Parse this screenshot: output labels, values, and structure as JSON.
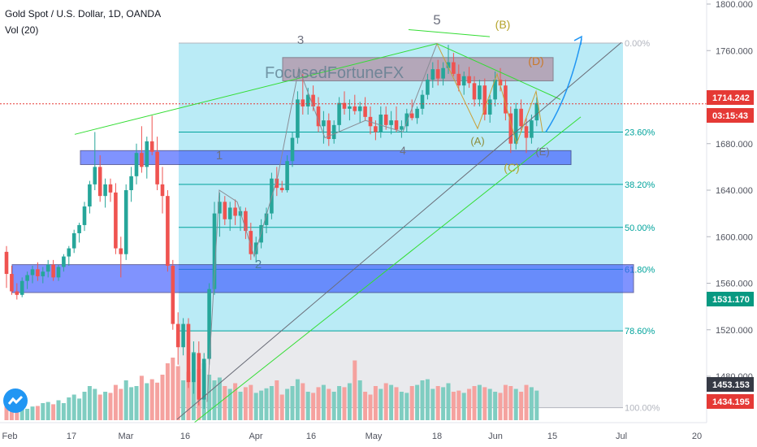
{
  "header": {
    "symbol_line": "Gold Spot / U.S. Dollar, 1D, OANDA",
    "indicator_line": "Vol (20)"
  },
  "watermark": "FocusedFortuneFX",
  "price_axis": {
    "ticks": [
      "1800.000",
      "1760.000",
      "1720.000",
      "1680.000",
      "1640.000",
      "1600.000",
      "1560.000",
      "1520.000",
      "1480.000"
    ],
    "tags": [
      {
        "label": "1714.242",
        "color": "#e53935",
        "value": 1714.242
      },
      {
        "label": "03:15:43",
        "color": "#e53935",
        "value": 1700.5
      },
      {
        "label": "1531.170",
        "color": "#089981",
        "value": 1531.17
      },
      {
        "label": "1453.153",
        "color": "#363a45",
        "value": 1453.153
      },
      {
        "label": "1434.195",
        "color": "#e53935",
        "value": 1434.195
      }
    ]
  },
  "time_axis": {
    "labels": [
      "Feb",
      "17",
      "Mar",
      "16",
      "Apr",
      "16",
      "May",
      "18",
      "Jun",
      "15",
      "Jul",
      "20"
    ]
  },
  "fib_levels": [
    {
      "label": "0.00%",
      "value": 1766.5,
      "color": "#b2b5be"
    },
    {
      "label": "23.60%",
      "value": 1690,
      "color": "#00a39c"
    },
    {
      "label": "38.20%",
      "value": 1645,
      "color": "#00a39c"
    },
    {
      "label": "50.00%",
      "value": 1608,
      "color": "#00a39c"
    },
    {
      "label": "61.80%",
      "value": 1572,
      "color": "#00a39c"
    },
    {
      "label": "78.60%",
      "value": 1519,
      "color": "#00a39c"
    },
    {
      "label": "100.00%",
      "value": 1453,
      "color": "#b2b5be"
    }
  ],
  "wave_labels": [
    {
      "text": "5",
      "color": "#6f7280"
    },
    {
      "text": "3",
      "color": "#6f7280"
    },
    {
      "text": "1",
      "color": "#6f7280"
    },
    {
      "text": "2",
      "color": "#4a7f9c"
    },
    {
      "text": "4",
      "color": "#6f7280"
    },
    {
      "text": "(B)",
      "color": "#b5a32a"
    },
    {
      "text": "(D)",
      "color": "#c97a2a"
    },
    {
      "text": "(A)",
      "color": "#8c8c3a"
    },
    {
      "text": "(C)",
      "color": "#b5a32a"
    },
    {
      "text": "(E)",
      "color": "#6f7280"
    }
  ],
  "colors": {
    "up": "#26a69a",
    "down": "#ef5350",
    "vol_up": "#7fcdc1",
    "vol_down": "#f5a29f",
    "fib_fill": "#aee8f4",
    "zone": "#3d5afe",
    "trend_green": "#33dd33",
    "trend_gray": "#6a6d78",
    "current_price": "#e53935"
  },
  "chart_data": {
    "type": "candlestick",
    "symbol": "Gold Spot / U.S. Dollar, 1D, OANDA",
    "y_range": [
      1430,
      1810
    ],
    "candles": [
      {
        "o": 1587,
        "h": 1592,
        "l": 1556,
        "c": 1568
      },
      {
        "o": 1568,
        "h": 1575,
        "l": 1550,
        "c": 1553
      },
      {
        "o": 1553,
        "h": 1560,
        "l": 1546,
        "c": 1550
      },
      {
        "o": 1550,
        "h": 1565,
        "l": 1548,
        "c": 1562
      },
      {
        "o": 1562,
        "h": 1570,
        "l": 1555,
        "c": 1567
      },
      {
        "o": 1567,
        "h": 1575,
        "l": 1560,
        "c": 1572
      },
      {
        "o": 1572,
        "h": 1578,
        "l": 1562,
        "c": 1566
      },
      {
        "o": 1566,
        "h": 1574,
        "l": 1560,
        "c": 1570
      },
      {
        "o": 1570,
        "h": 1580,
        "l": 1565,
        "c": 1576
      },
      {
        "o": 1576,
        "h": 1580,
        "l": 1562,
        "c": 1565
      },
      {
        "o": 1565,
        "h": 1576,
        "l": 1562,
        "c": 1574
      },
      {
        "o": 1574,
        "h": 1585,
        "l": 1570,
        "c": 1583
      },
      {
        "o": 1583,
        "h": 1592,
        "l": 1575,
        "c": 1590
      },
      {
        "o": 1590,
        "h": 1606,
        "l": 1586,
        "c": 1603
      },
      {
        "o": 1603,
        "h": 1612,
        "l": 1595,
        "c": 1610
      },
      {
        "o": 1610,
        "h": 1630,
        "l": 1605,
        "c": 1626
      },
      {
        "o": 1626,
        "h": 1648,
        "l": 1620,
        "c": 1645
      },
      {
        "o": 1645,
        "h": 1690,
        "l": 1640,
        "c": 1660
      },
      {
        "o": 1660,
        "h": 1670,
        "l": 1630,
        "c": 1635
      },
      {
        "o": 1635,
        "h": 1650,
        "l": 1625,
        "c": 1645
      },
      {
        "o": 1645,
        "h": 1650,
        "l": 1630,
        "c": 1638
      },
      {
        "o": 1638,
        "h": 1646,
        "l": 1585,
        "c": 1590
      },
      {
        "o": 1590,
        "h": 1600,
        "l": 1565,
        "c": 1585
      },
      {
        "o": 1585,
        "h": 1645,
        "l": 1580,
        "c": 1640
      },
      {
        "o": 1640,
        "h": 1660,
        "l": 1630,
        "c": 1652
      },
      {
        "o": 1652,
        "h": 1680,
        "l": 1645,
        "c": 1672
      },
      {
        "o": 1672,
        "h": 1695,
        "l": 1655,
        "c": 1660
      },
      {
        "o": 1660,
        "h": 1686,
        "l": 1650,
        "c": 1682
      },
      {
        "o": 1682,
        "h": 1704,
        "l": 1670,
        "c": 1673
      },
      {
        "o": 1673,
        "h": 1686,
        "l": 1640,
        "c": 1645
      },
      {
        "o": 1645,
        "h": 1660,
        "l": 1620,
        "c": 1635
      },
      {
        "o": 1635,
        "h": 1640,
        "l": 1570,
        "c": 1575
      },
      {
        "o": 1575,
        "h": 1580,
        "l": 1520,
        "c": 1525
      },
      {
        "o": 1525,
        "h": 1535,
        "l": 1490,
        "c": 1505
      },
      {
        "o": 1505,
        "h": 1530,
        "l": 1498,
        "c": 1525
      },
      {
        "o": 1525,
        "h": 1530,
        "l": 1470,
        "c": 1475
      },
      {
        "o": 1475,
        "h": 1510,
        "l": 1465,
        "c": 1500
      },
      {
        "o": 1500,
        "h": 1510,
        "l": 1455,
        "c": 1460
      },
      {
        "o": 1460,
        "h": 1500,
        "l": 1452,
        "c": 1495
      },
      {
        "o": 1495,
        "h": 1560,
        "l": 1490,
        "c": 1555
      },
      {
        "o": 1555,
        "h": 1630,
        "l": 1550,
        "c": 1620
      },
      {
        "o": 1620,
        "h": 1638,
        "l": 1600,
        "c": 1630
      },
      {
        "o": 1630,
        "h": 1635,
        "l": 1610,
        "c": 1615
      },
      {
        "o": 1615,
        "h": 1630,
        "l": 1605,
        "c": 1625
      },
      {
        "o": 1625,
        "h": 1632,
        "l": 1610,
        "c": 1618
      },
      {
        "o": 1618,
        "h": 1626,
        "l": 1605,
        "c": 1622
      },
      {
        "o": 1622,
        "h": 1625,
        "l": 1598,
        "c": 1605
      },
      {
        "o": 1605,
        "h": 1612,
        "l": 1580,
        "c": 1585
      },
      {
        "o": 1585,
        "h": 1600,
        "l": 1578,
        "c": 1595
      },
      {
        "o": 1595,
        "h": 1615,
        "l": 1590,
        "c": 1610
      },
      {
        "o": 1610,
        "h": 1625,
        "l": 1603,
        "c": 1620
      },
      {
        "o": 1620,
        "h": 1655,
        "l": 1615,
        "c": 1650
      },
      {
        "o": 1650,
        "h": 1660,
        "l": 1635,
        "c": 1642
      },
      {
        "o": 1642,
        "h": 1648,
        "l": 1638,
        "c": 1640
      },
      {
        "o": 1640,
        "h": 1670,
        "l": 1638,
        "c": 1665
      },
      {
        "o": 1665,
        "h": 1690,
        "l": 1660,
        "c": 1685
      },
      {
        "o": 1685,
        "h": 1725,
        "l": 1680,
        "c": 1718
      },
      {
        "o": 1718,
        "h": 1740,
        "l": 1705,
        "c": 1712
      },
      {
        "o": 1712,
        "h": 1728,
        "l": 1705,
        "c": 1722
      },
      {
        "o": 1722,
        "h": 1730,
        "l": 1708,
        "c": 1712
      },
      {
        "o": 1712,
        "h": 1720,
        "l": 1690,
        "c": 1695
      },
      {
        "o": 1695,
        "h": 1708,
        "l": 1680,
        "c": 1700
      },
      {
        "o": 1700,
        "h": 1706,
        "l": 1678,
        "c": 1684
      },
      {
        "o": 1684,
        "h": 1700,
        "l": 1680,
        "c": 1696
      },
      {
        "o": 1696,
        "h": 1720,
        "l": 1690,
        "c": 1715
      },
      {
        "o": 1715,
        "h": 1725,
        "l": 1705,
        "c": 1710
      },
      {
        "o": 1710,
        "h": 1718,
        "l": 1700,
        "c": 1712
      },
      {
        "o": 1712,
        "h": 1722,
        "l": 1705,
        "c": 1708
      },
      {
        "o": 1708,
        "h": 1716,
        "l": 1698,
        "c": 1712
      },
      {
        "o": 1712,
        "h": 1720,
        "l": 1700,
        "c": 1703
      },
      {
        "o": 1703,
        "h": 1712,
        "l": 1688,
        "c": 1695
      },
      {
        "o": 1695,
        "h": 1700,
        "l": 1683,
        "c": 1690
      },
      {
        "o": 1690,
        "h": 1712,
        "l": 1685,
        "c": 1705
      },
      {
        "o": 1705,
        "h": 1712,
        "l": 1692,
        "c": 1696
      },
      {
        "o": 1696,
        "h": 1708,
        "l": 1688,
        "c": 1700
      },
      {
        "o": 1700,
        "h": 1712,
        "l": 1690,
        "c": 1692
      },
      {
        "o": 1692,
        "h": 1700,
        "l": 1685,
        "c": 1695
      },
      {
        "o": 1695,
        "h": 1710,
        "l": 1690,
        "c": 1706
      },
      {
        "o": 1706,
        "h": 1718,
        "l": 1700,
        "c": 1702
      },
      {
        "o": 1702,
        "h": 1712,
        "l": 1697,
        "c": 1710
      },
      {
        "o": 1710,
        "h": 1726,
        "l": 1705,
        "c": 1722
      },
      {
        "o": 1722,
        "h": 1740,
        "l": 1718,
        "c": 1735
      },
      {
        "o": 1735,
        "h": 1750,
        "l": 1728,
        "c": 1744
      },
      {
        "o": 1744,
        "h": 1752,
        "l": 1730,
        "c": 1736
      },
      {
        "o": 1736,
        "h": 1750,
        "l": 1730,
        "c": 1745
      },
      {
        "o": 1745,
        "h": 1765,
        "l": 1740,
        "c": 1750
      },
      {
        "o": 1750,
        "h": 1758,
        "l": 1738,
        "c": 1740
      },
      {
        "o": 1740,
        "h": 1748,
        "l": 1725,
        "c": 1730
      },
      {
        "o": 1730,
        "h": 1742,
        "l": 1722,
        "c": 1738
      },
      {
        "o": 1738,
        "h": 1746,
        "l": 1728,
        "c": 1732
      },
      {
        "o": 1732,
        "h": 1738,
        "l": 1712,
        "c": 1718
      },
      {
        "o": 1718,
        "h": 1735,
        "l": 1712,
        "c": 1730
      },
      {
        "o": 1730,
        "h": 1736,
        "l": 1700,
        "c": 1705
      },
      {
        "o": 1705,
        "h": 1722,
        "l": 1698,
        "c": 1718
      },
      {
        "o": 1718,
        "h": 1742,
        "l": 1712,
        "c": 1735
      },
      {
        "o": 1735,
        "h": 1745,
        "l": 1725,
        "c": 1730
      },
      {
        "o": 1730,
        "h": 1735,
        "l": 1700,
        "c": 1706
      },
      {
        "o": 1706,
        "h": 1712,
        "l": 1672,
        "c": 1680
      },
      {
        "o": 1680,
        "h": 1715,
        "l": 1675,
        "c": 1710
      },
      {
        "o": 1710,
        "h": 1718,
        "l": 1690,
        "c": 1695
      },
      {
        "o": 1695,
        "h": 1702,
        "l": 1672,
        "c": 1685
      },
      {
        "o": 1685,
        "h": 1705,
        "l": 1680,
        "c": 1700
      },
      {
        "o": 1700,
        "h": 1720,
        "l": 1695,
        "c": 1715
      }
    ],
    "volume": [
      30,
      26,
      22,
      28,
      20,
      24,
      25,
      30,
      32,
      28,
      35,
      30,
      40,
      45,
      38,
      50,
      60,
      55,
      45,
      50,
      48,
      62,
      55,
      70,
      58,
      60,
      78,
      65,
      72,
      66,
      80,
      100,
      110,
      95,
      70,
      85,
      120,
      90,
      100,
      80,
      70,
      75,
      60,
      55,
      65,
      50,
      58,
      62,
      48,
      52,
      56,
      60,
      70,
      45,
      55,
      60,
      72,
      65,
      50,
      48,
      58,
      62,
      55,
      50,
      60,
      58,
      65,
      105,
      70,
      50,
      45,
      60,
      55,
      65,
      62,
      58,
      50,
      48,
      60,
      62,
      70,
      72,
      55,
      60,
      58,
      65,
      50,
      52,
      48,
      55,
      60,
      62,
      58,
      55,
      50,
      48,
      62,
      60,
      55,
      50,
      62,
      58,
      52
    ]
  }
}
